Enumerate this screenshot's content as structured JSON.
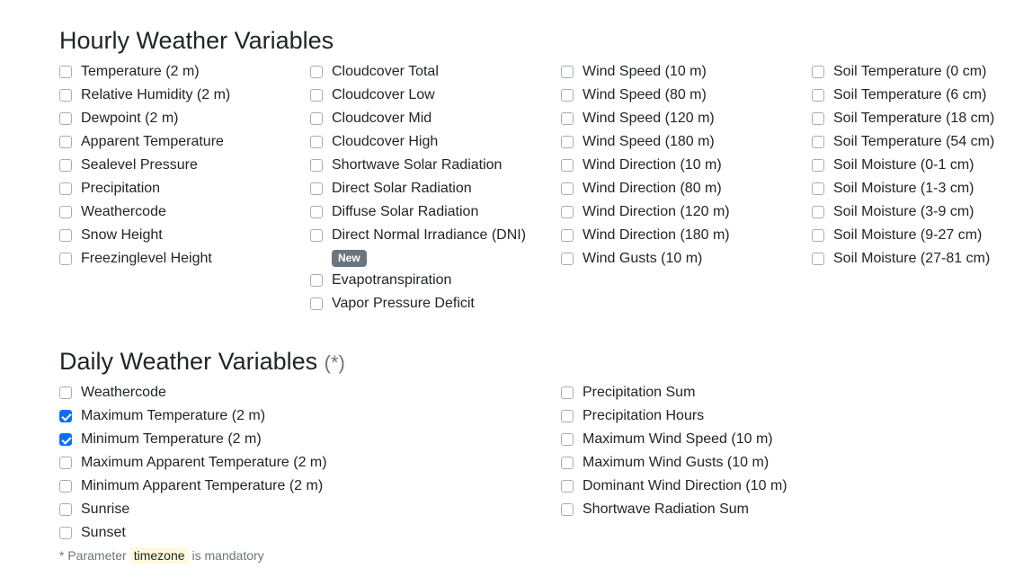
{
  "hourly": {
    "title": "Hourly Weather Variables",
    "col1": [
      {
        "label": "Temperature (2 m)",
        "checked": false
      },
      {
        "label": "Relative Humidity (2 m)",
        "checked": false
      },
      {
        "label": "Dewpoint (2 m)",
        "checked": false
      },
      {
        "label": "Apparent Temperature",
        "checked": false
      },
      {
        "label": "Sealevel Pressure",
        "checked": false
      },
      {
        "label": "Precipitation",
        "checked": false
      },
      {
        "label": "Weathercode",
        "checked": false
      },
      {
        "label": "Snow Height",
        "checked": false
      },
      {
        "label": "Freezinglevel Height",
        "checked": false
      }
    ],
    "col2": [
      {
        "label": "Cloudcover Total",
        "checked": false
      },
      {
        "label": "Cloudcover Low",
        "checked": false
      },
      {
        "label": "Cloudcover Mid",
        "checked": false
      },
      {
        "label": "Cloudcover High",
        "checked": false
      },
      {
        "label": "Shortwave Solar Radiation",
        "checked": false
      },
      {
        "label": "Direct Solar Radiation",
        "checked": false
      },
      {
        "label": "Diffuse Solar Radiation",
        "checked": false
      },
      {
        "label": "Direct Normal Irradiance (DNI)",
        "checked": false
      },
      {
        "label": "Evapotranspiration",
        "checked": false
      },
      {
        "label": "Vapor Pressure Deficit",
        "checked": false
      }
    ],
    "new_badge": "New",
    "col3": [
      {
        "label": "Wind Speed (10 m)",
        "checked": false
      },
      {
        "label": "Wind Speed (80 m)",
        "checked": false
      },
      {
        "label": "Wind Speed (120 m)",
        "checked": false
      },
      {
        "label": "Wind Speed (180 m)",
        "checked": false
      },
      {
        "label": "Wind Direction (10 m)",
        "checked": false
      },
      {
        "label": "Wind Direction (80 m)",
        "checked": false
      },
      {
        "label": "Wind Direction (120 m)",
        "checked": false
      },
      {
        "label": "Wind Direction (180 m)",
        "checked": false
      },
      {
        "label": "Wind Gusts (10 m)",
        "checked": false
      }
    ],
    "col4": [
      {
        "label": "Soil Temperature (0 cm)",
        "checked": false
      },
      {
        "label": "Soil Temperature (6 cm)",
        "checked": false
      },
      {
        "label": "Soil Temperature (18 cm)",
        "checked": false
      },
      {
        "label": "Soil Temperature (54 cm)",
        "checked": false
      },
      {
        "label": "Soil Moisture (0-1 cm)",
        "checked": false
      },
      {
        "label": "Soil Moisture (1-3 cm)",
        "checked": false
      },
      {
        "label": "Soil Moisture (3-9 cm)",
        "checked": false
      },
      {
        "label": "Soil Moisture (9-27 cm)",
        "checked": false
      },
      {
        "label": "Soil Moisture (27-81 cm)",
        "checked": false
      }
    ]
  },
  "daily": {
    "title": "Daily Weather Variables",
    "title_suffix": "(*)",
    "col1": [
      {
        "label": "Weathercode",
        "checked": false
      },
      {
        "label": "Maximum Temperature (2 m)",
        "checked": true
      },
      {
        "label": "Minimum Temperature (2 m)",
        "checked": true
      },
      {
        "label": "Maximum Apparent Temperature (2 m)",
        "checked": false
      },
      {
        "label": "Minimum Apparent Temperature (2 m)",
        "checked": false
      },
      {
        "label": "Sunrise",
        "checked": false
      },
      {
        "label": "Sunset",
        "checked": false
      }
    ],
    "col2": [
      {
        "label": "Precipitation Sum",
        "checked": false
      },
      {
        "label": "Precipitation Hours",
        "checked": false
      },
      {
        "label": "Maximum Wind Speed (10 m)",
        "checked": false
      },
      {
        "label": "Maximum Wind Gusts (10 m)",
        "checked": false
      },
      {
        "label": "Dominant Wind Direction (10 m)",
        "checked": false
      },
      {
        "label": "Shortwave Radiation Sum",
        "checked": false
      }
    ]
  },
  "footnote": {
    "prefix": "* Parameter",
    "code": "timezone",
    "suffix": "is mandatory"
  },
  "colors": {
    "checkbox_checked": "#0d6efd",
    "badge": "#6c757d",
    "code_highlight": "#fff8dc"
  }
}
